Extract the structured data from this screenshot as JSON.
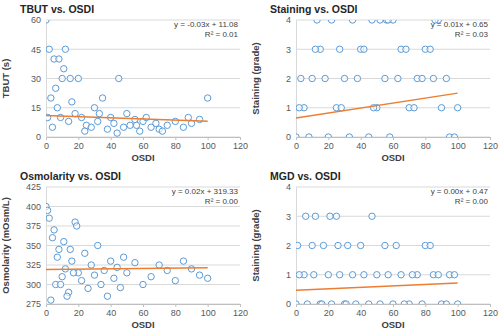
{
  "chart_data": [
    {
      "type": "scatter",
      "title": "TBUT vs. OSDI",
      "x_label": "OSDI",
      "y_label": "TBUT (s)",
      "x": [
        0,
        2,
        5,
        8,
        10,
        12,
        15,
        3,
        7,
        6,
        9,
        14,
        18,
        20,
        22,
        25,
        28,
        30,
        32,
        35,
        38,
        40,
        42,
        45,
        48,
        50,
        52,
        55,
        58,
        60,
        62,
        65,
        68,
        70,
        75,
        80,
        85,
        90,
        95,
        100,
        1,
        4,
        11,
        16,
        24,
        33,
        44,
        56,
        72,
        88
      ],
      "values": [
        60,
        45,
        40,
        40,
        30,
        45,
        30,
        20,
        15,
        25,
        10,
        8,
        12,
        30,
        10,
        6,
        5,
        15,
        8,
        20,
        4,
        10,
        7,
        30,
        5,
        12,
        6,
        9,
        3,
        8,
        10,
        5,
        7,
        4,
        6,
        8,
        5,
        7,
        9,
        20,
        10,
        5,
        35,
        18,
        3,
        12,
        2,
        6,
        3,
        10
      ],
      "color": "#5b9bd5",
      "marker": "circle-open",
      "xlim": [
        0,
        120
      ],
      "xticks": [
        0,
        20,
        40,
        60,
        80,
        100,
        120
      ],
      "ylim": [
        0,
        60
      ],
      "yticks": [
        0,
        15,
        30,
        45,
        60
      ],
      "grid": true,
      "trendline": {
        "slope": -0.03,
        "intercept": 11.08,
        "x": [
          0,
          100
        ],
        "color": "#ed7d31"
      },
      "annotations": [
        "y = -0.03x + 11.08",
        "R² = 0.01"
      ]
    },
    {
      "type": "scatter",
      "title": "Staining vs. OSDI",
      "x_label": "OSDI",
      "y_label": "Staining (grade)",
      "x": [
        0,
        5,
        10,
        15,
        20,
        25,
        30,
        35,
        40,
        45,
        50,
        55,
        60,
        65,
        70,
        75,
        80,
        85,
        90,
        95,
        100,
        2,
        8,
        12,
        18,
        22,
        28,
        33,
        38,
        42,
        48,
        52,
        58,
        63,
        68,
        73,
        78,
        83,
        88,
        93,
        98,
        3,
        13,
        27,
        47,
        56,
        57,
        86
      ],
      "values": [
        0,
        1,
        2,
        3,
        0,
        1,
        2,
        4,
        3,
        0,
        1,
        2,
        4,
        3,
        1,
        2,
        3,
        2,
        1,
        0,
        1,
        1,
        0,
        3,
        2,
        4,
        1,
        0,
        2,
        3,
        1,
        4,
        0,
        2,
        3,
        1,
        2,
        3,
        4,
        2,
        0,
        2,
        4,
        3,
        4,
        4,
        4,
        4
      ],
      "color": "#5b9bd5",
      "marker": "circle-open",
      "xlim": [
        0,
        120
      ],
      "xticks": [
        0,
        20,
        40,
        60,
        80,
        100,
        120
      ],
      "ylim": [
        0,
        4
      ],
      "yticks": [
        0,
        1,
        2,
        3,
        4
      ],
      "grid": true,
      "trendline": {
        "slope": 0.0085,
        "intercept": 0.65,
        "x": [
          0,
          100
        ],
        "color": "#ed7d31"
      },
      "annotations": [
        "y = 0.01x + 0.65",
        "R² = 0.03"
      ]
    },
    {
      "type": "scatter",
      "title": "Osmolarity vs. OSDI",
      "x_label": "OSDI",
      "y_label": "Osmolarity (mOsm/L)",
      "x": [
        0,
        2,
        4,
        6,
        8,
        10,
        12,
        14,
        16,
        18,
        20,
        22,
        24,
        26,
        28,
        30,
        32,
        34,
        36,
        38,
        40,
        42,
        44,
        46,
        48,
        50,
        55,
        60,
        65,
        70,
        75,
        80,
        85,
        90,
        95,
        100,
        1,
        3,
        5,
        7,
        9,
        11,
        13,
        15,
        17,
        19
      ],
      "values": [
        400,
        385,
        360,
        300,
        345,
        310,
        320,
        290,
        330,
        380,
        315,
        305,
        340,
        295,
        325,
        312,
        350,
        300,
        318,
        285,
        330,
        308,
        322,
        296,
        335,
        315,
        328,
        300,
        310,
        325,
        318,
        305,
        330,
        320,
        312,
        308,
        395,
        280,
        370,
        335,
        300,
        355,
        285,
        345,
        315,
        375
      ],
      "color": "#5b9bd5",
      "marker": "circle-open",
      "xlim": [
        0,
        120
      ],
      "xticks": [
        0,
        20,
        40,
        60,
        80,
        100,
        120
      ],
      "ylim": [
        275,
        425
      ],
      "yticks": [
        275,
        300,
        325,
        350,
        375,
        400,
        425
      ],
      "grid": true,
      "trendline": {
        "slope": 0.02,
        "intercept": 319.33,
        "x": [
          0,
          100
        ],
        "color": "#ed7d31"
      },
      "annotations": [
        "y = 0.02x + 319.33",
        "R² = 0.00"
      ]
    },
    {
      "type": "scatter",
      "title": "MGD vs. OSDI",
      "x_label": "OSDI",
      "y_label": "Staining (grade)",
      "x": [
        0,
        5,
        10,
        15,
        20,
        25,
        30,
        35,
        40,
        45,
        50,
        55,
        60,
        65,
        70,
        75,
        80,
        85,
        90,
        95,
        100,
        2,
        7,
        12,
        17,
        22,
        27,
        32,
        37,
        42,
        47,
        52,
        57,
        62,
        67,
        72,
        78,
        83,
        88,
        93,
        98,
        1,
        6,
        11,
        16,
        21,
        26,
        31
      ],
      "values": [
        0,
        1,
        2,
        0,
        1,
        3,
        0,
        1,
        2,
        0,
        1,
        2,
        0,
        1,
        0,
        1,
        2,
        1,
        0,
        1,
        0,
        1,
        0,
        3,
        2,
        0,
        1,
        2,
        0,
        1,
        3,
        0,
        1,
        2,
        0,
        1,
        0,
        2,
        1,
        0,
        1,
        2,
        3,
        1,
        0,
        3,
        2,
        0
      ],
      "color": "#5b9bd5",
      "marker": "circle-open",
      "xlim": [
        0,
        120
      ],
      "xticks": [
        0,
        20,
        40,
        60,
        80,
        100,
        120
      ],
      "ylim": [
        0,
        4
      ],
      "yticks": [
        0,
        1,
        2,
        3,
        4
      ],
      "grid": true,
      "trendline": {
        "slope": 0.0025,
        "intercept": 0.47,
        "x": [
          0,
          100
        ],
        "color": "#ed7d31"
      },
      "annotations": [
        "y = 0.00x + 0.47",
        "R² = 0.00"
      ]
    }
  ]
}
